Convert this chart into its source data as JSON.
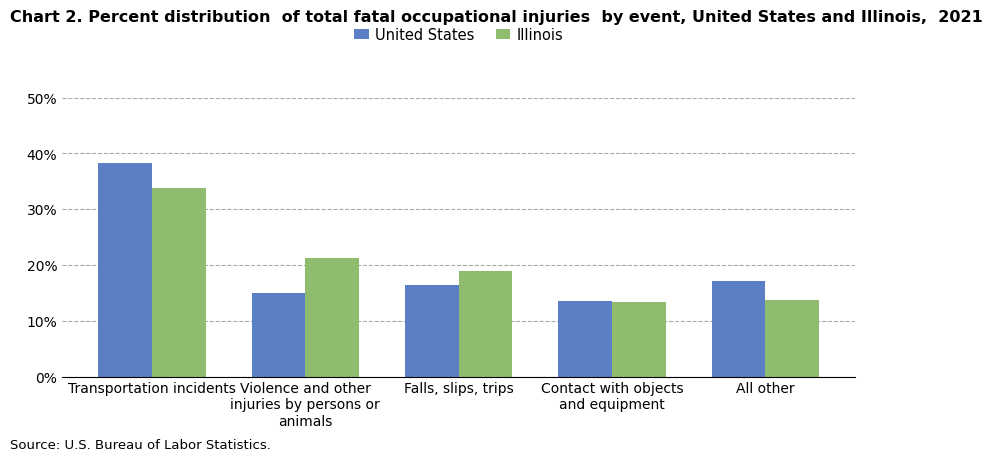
{
  "title": "Chart 2. Percent distribution  of total fatal occupational injuries  by event, United States and Illinois,  2021",
  "categories": [
    "Transportation incidents",
    "Violence and other\ninjuries by persons or\nanimals",
    "Falls, slips, trips",
    "Contact with objects\nand equipment",
    "All other"
  ],
  "us_values": [
    38.3,
    14.9,
    16.4,
    13.6,
    17.2
  ],
  "il_values": [
    33.8,
    21.2,
    19.0,
    13.3,
    13.8
  ],
  "us_color": "#5b7fc4",
  "il_color": "#8fbc6e",
  "us_label": "United States",
  "il_label": "Illinois",
  "ylim": [
    0,
    50
  ],
  "yticks": [
    0,
    10,
    20,
    30,
    40,
    50
  ],
  "source": "Source: U.S. Bureau of Labor Statistics.",
  "bar_width": 0.35,
  "title_fontsize": 11.5,
  "legend_fontsize": 10.5,
  "tick_fontsize": 10,
  "source_fontsize": 9.5
}
